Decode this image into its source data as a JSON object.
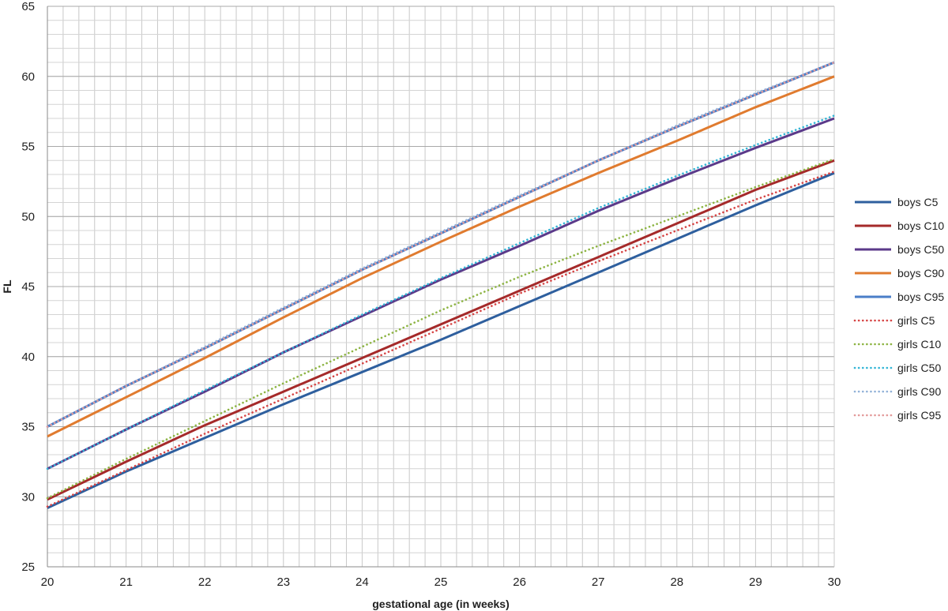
{
  "chart_data": {
    "type": "line",
    "title": "",
    "xlabel": "gestational age (in weeks)",
    "ylabel": "FL",
    "xlim": [
      20,
      30
    ],
    "ylim": [
      25,
      65
    ],
    "xticks": [
      20,
      21,
      22,
      23,
      24,
      25,
      26,
      27,
      28,
      29,
      30
    ],
    "yticks": [
      25,
      30,
      35,
      40,
      45,
      50,
      55,
      60,
      65
    ],
    "grid": true,
    "legend_position": "right",
    "x": [
      20,
      21,
      22,
      23,
      24,
      25,
      26,
      27,
      28,
      29,
      30
    ],
    "series": [
      {
        "name": "boys C5",
        "color": "#2E5F9E",
        "style": "solid",
        "values": [
          29.2,
          31.8,
          34.2,
          36.6,
          38.9,
          41.2,
          43.6,
          46.0,
          48.4,
          50.8,
          53.1
        ]
      },
      {
        "name": "boys C10",
        "color": "#A52A2A",
        "style": "solid",
        "values": [
          29.8,
          32.5,
          35.1,
          37.5,
          39.9,
          42.3,
          44.7,
          47.1,
          49.5,
          51.9,
          54.0
        ]
      },
      {
        "name": "boys C50",
        "color": "#5B3A8A",
        "style": "solid",
        "values": [
          32.0,
          34.8,
          37.5,
          40.3,
          42.9,
          45.5,
          47.9,
          50.4,
          52.7,
          54.9,
          57.0
        ]
      },
      {
        "name": "boys C90",
        "color": "#E07B2F",
        "style": "solid",
        "values": [
          34.3,
          37.1,
          39.9,
          42.8,
          45.6,
          48.2,
          50.7,
          53.1,
          55.4,
          57.8,
          60.0
        ]
      },
      {
        "name": "boys C95",
        "color": "#4A7EC8",
        "style": "solid",
        "values": [
          35.0,
          37.9,
          40.6,
          43.4,
          46.2,
          48.8,
          51.4,
          54.0,
          56.4,
          58.7,
          61.0
        ]
      },
      {
        "name": "girls C5",
        "color": "#D64545",
        "style": "dotted",
        "values": [
          29.3,
          31.9,
          34.5,
          37.0,
          39.5,
          42.0,
          44.5,
          46.8,
          49.0,
          51.2,
          53.2
        ]
      },
      {
        "name": "girls C10",
        "color": "#8DB443",
        "style": "dotted",
        "values": [
          29.9,
          32.7,
          35.4,
          38.1,
          40.7,
          43.3,
          45.7,
          47.9,
          50.0,
          52.1,
          54.1
        ]
      },
      {
        "name": "girls C50",
        "color": "#33B5D6",
        "style": "dotted",
        "values": [
          32.0,
          34.8,
          37.6,
          40.3,
          43.0,
          45.6,
          48.1,
          50.6,
          52.9,
          55.1,
          57.2
        ]
      },
      {
        "name": "girls C90",
        "color": "#92B2D8",
        "style": "dotted",
        "values": [
          35.0,
          37.9,
          40.7,
          43.5,
          46.3,
          48.9,
          51.5,
          54.0,
          56.5,
          58.8,
          61.0
        ]
      },
      {
        "name": "girls C95",
        "color": "#E39A9A",
        "style": "dotted",
        "values": [
          35.0,
          37.9,
          40.6,
          43.4,
          46.2,
          48.8,
          51.4,
          54.0,
          56.4,
          58.7,
          61.0
        ]
      }
    ]
  }
}
